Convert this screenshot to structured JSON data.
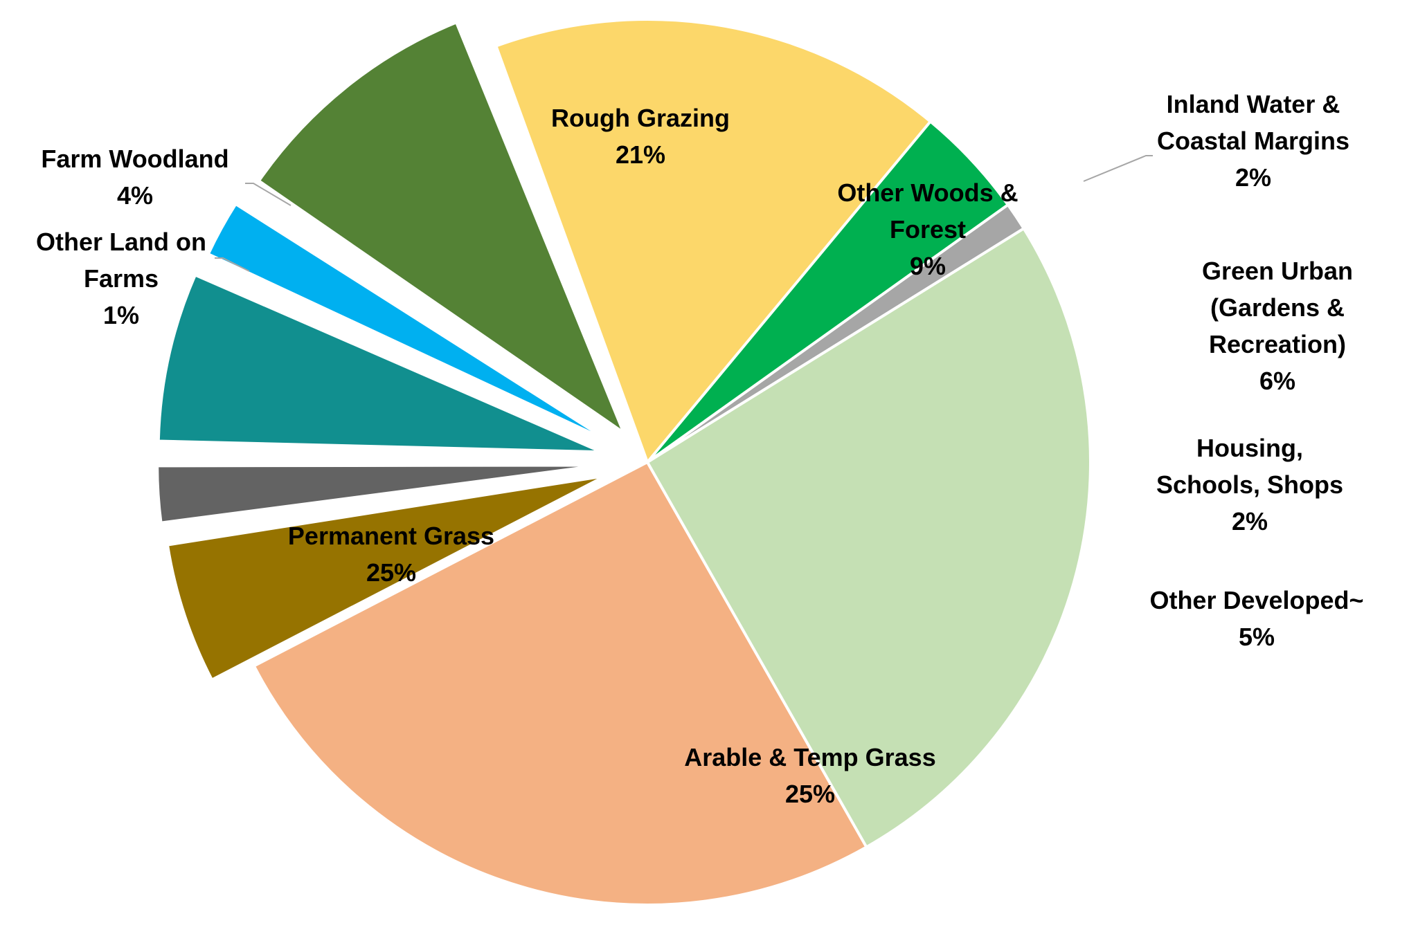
{
  "chart_data": {
    "type": "pie",
    "slices": [
      {
        "label_lines": [
          "Rough Grazing"
        ],
        "pct": "21%",
        "value": 21,
        "color": "#FCD76A",
        "exploded": false
      },
      {
        "label_lines": [
          "Other Woods &",
          "Forest"
        ],
        "pct": "9%",
        "value": 9,
        "color": "#548235",
        "exploded": true
      },
      {
        "label_lines": [
          "Inland Water &",
          "Coastal Margins"
        ],
        "pct": "2%",
        "value": 2,
        "color": "#00B0F0",
        "exploded": true
      },
      {
        "label_lines": [
          "Green Urban",
          "(Gardens &",
          "Recreation)"
        ],
        "pct": "6%",
        "value": 6,
        "color": "#118F8F",
        "exploded": true
      },
      {
        "label_lines": [
          "Housing,",
          "Schools, Shops"
        ],
        "pct": "2%",
        "value": 2,
        "color": "#636363",
        "exploded": true
      },
      {
        "label_lines": [
          "Other Developed~"
        ],
        "pct": "5%",
        "value": 5,
        "color": "#967300",
        "exploded": true
      },
      {
        "label_lines": [
          "Arable & Temp Grass"
        ],
        "pct": "25%",
        "value": 25,
        "color": "#F4B183",
        "exploded": false
      },
      {
        "label_lines": [
          "Permanent Grass"
        ],
        "pct": "25%",
        "value": 25,
        "color": "#C5E0B4",
        "exploded": false
      },
      {
        "label_lines": [
          "Other Land on",
          "Farms"
        ],
        "pct": "1%",
        "value": 1,
        "color": "#A6A6A6",
        "exploded": false
      },
      {
        "label_lines": [
          "Farm Woodland"
        ],
        "pct": "4%",
        "value": 4,
        "color": "#00B050",
        "exploded": false
      }
    ]
  }
}
